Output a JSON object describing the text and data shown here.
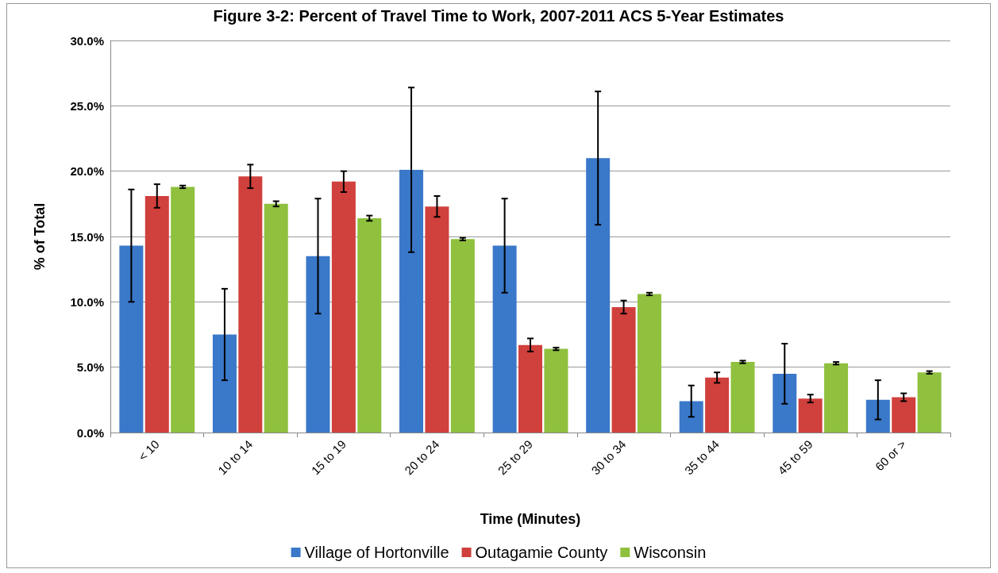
{
  "chart_data": {
    "type": "bar",
    "title": "Figure 3-2: Percent of Travel Time to Work, 2007-2011 ACS 5-Year Estimates",
    "xlabel": "Time (Minutes)",
    "ylabel": "% of Total",
    "categories": [
      "< 10",
      "10 to 14",
      "15 to 19",
      "20 to 24",
      "25 to 29",
      "30 to 34",
      "35 to 44",
      "45 to 59",
      "60 or >"
    ],
    "series": [
      {
        "name": "Village of Hortonville",
        "color": "#3a78c9",
        "values": [
          14.3,
          7.5,
          13.5,
          20.1,
          14.3,
          21.0,
          2.4,
          4.5,
          2.5
        ],
        "errors": [
          [
            10.0,
            18.6
          ],
          [
            4.0,
            11.0
          ],
          [
            9.1,
            17.9
          ],
          [
            13.8,
            26.4
          ],
          [
            10.7,
            17.9
          ],
          [
            15.9,
            26.1
          ],
          [
            1.2,
            3.6
          ],
          [
            2.2,
            6.8
          ],
          [
            1.0,
            4.0
          ]
        ]
      },
      {
        "name": "Outagamie County",
        "color": "#d0403c",
        "values": [
          18.1,
          19.6,
          19.2,
          17.3,
          6.7,
          9.6,
          4.2,
          2.6,
          2.7
        ],
        "errors": [
          [
            17.2,
            19.0
          ],
          [
            18.7,
            20.5
          ],
          [
            18.4,
            20.0
          ],
          [
            16.5,
            18.1
          ],
          [
            6.2,
            7.2
          ],
          [
            9.1,
            10.1
          ],
          [
            3.8,
            4.6
          ],
          [
            2.3,
            2.9
          ],
          [
            2.4,
            3.0
          ]
        ]
      },
      {
        "name": "Wisconsin",
        "color": "#8fc03e",
        "values": [
          18.8,
          17.5,
          16.4,
          14.8,
          6.4,
          10.6,
          5.4,
          5.3,
          4.6
        ],
        "errors": [
          [
            18.7,
            18.9
          ],
          [
            17.3,
            17.7
          ],
          [
            16.2,
            16.6
          ],
          [
            14.7,
            14.9
          ],
          [
            6.3,
            6.5
          ],
          [
            10.5,
            10.7
          ],
          [
            5.3,
            5.5
          ],
          [
            5.2,
            5.4
          ],
          [
            4.5,
            4.7
          ]
        ]
      }
    ],
    "ylim": [
      0,
      30
    ],
    "yticks": [
      {
        "value": 0,
        "label": "0.0%"
      },
      {
        "value": 5,
        "label": "5.0%"
      },
      {
        "value": 10,
        "label": "10.0%"
      },
      {
        "value": 15,
        "label": "15.0%"
      },
      {
        "value": 20,
        "label": "20.0%"
      },
      {
        "value": 25,
        "label": "25.0%"
      },
      {
        "value": 30,
        "label": "30.0%"
      }
    ],
    "grid": "y",
    "legend": "bottom"
  }
}
